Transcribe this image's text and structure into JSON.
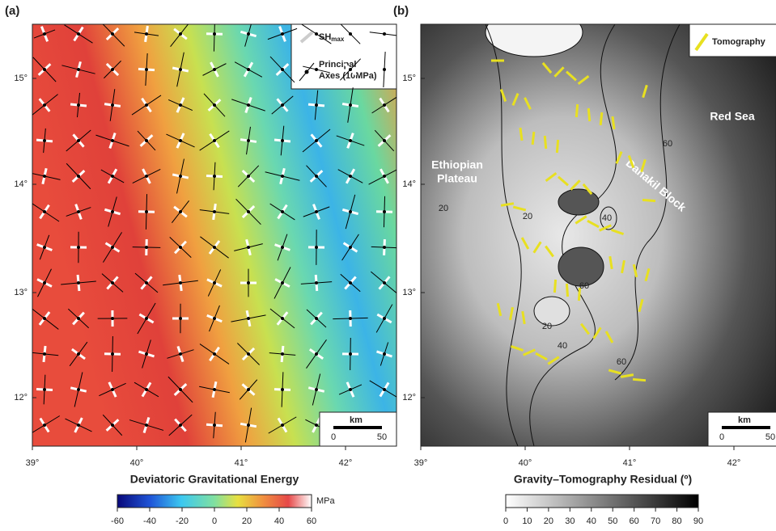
{
  "panels": [
    {
      "label": "(a)",
      "title": "Deviatoric Gravitational Energy",
      "legend": [
        "SH",
        "max",
        "Principal",
        "Axes (10MPa)"
      ],
      "scale": [
        "km",
        "0",
        "50"
      ],
      "colorbar": {
        "ticks": [
          -60,
          -40,
          -20,
          0,
          20,
          40,
          60
        ],
        "unit": "MPa"
      }
    },
    {
      "label": "(b)",
      "title": "Gravity–Tomography Residual (º)",
      "legend": [
        "Tomography"
      ],
      "places": [
        "Red Sea",
        "Ethiopian",
        "Plateau",
        "Danakil Block"
      ],
      "contour_labels": [
        20,
        20,
        40,
        60,
        20,
        40,
        60,
        60
      ],
      "scale": [
        "km",
        "0",
        "50"
      ],
      "colorbar": {
        "ticks": [
          0,
          10,
          20,
          30,
          40,
          50,
          60,
          70,
          80,
          90
        ]
      }
    }
  ],
  "lat_ticks": [
    "15°",
    "14°",
    "13°",
    "12°"
  ],
  "lon_ticks": [
    "39°",
    "40°",
    "41°",
    "42°"
  ]
}
